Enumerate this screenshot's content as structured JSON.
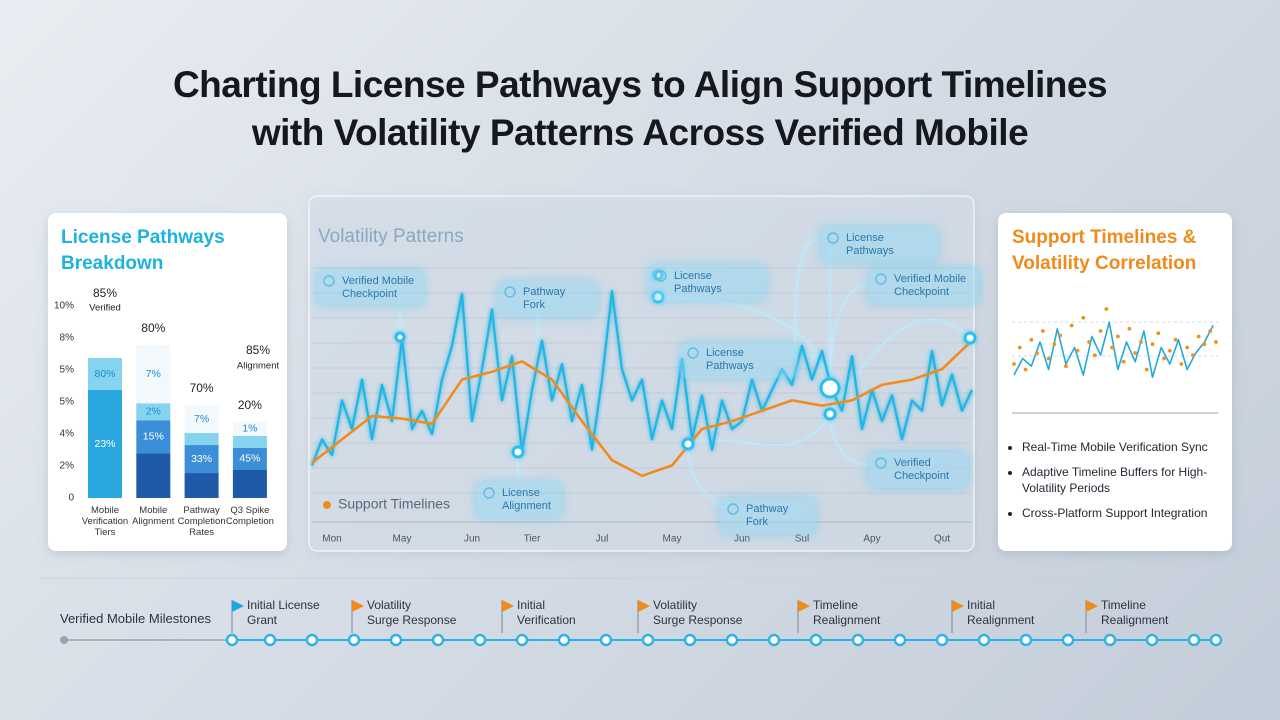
{
  "title": [
    "Charting License Pathways to Align Support Timelines",
    "with Volatility Patterns Across Verified Mobile"
  ],
  "chart_data": [
    {
      "type": "bar",
      "stacked": true,
      "title": [
        "License Pathways",
        "Breakdown"
      ],
      "categories": [
        "Mobile Verification Tiers",
        "Mobile Alignment",
        "Pathway Completion Rates",
        "Q3 Spike Completion"
      ],
      "series": [
        {
          "color": "#2aa7df",
          "values": [
            3.375,
            0,
            0,
            0
          ],
          "labels": [
            "23%",
            null,
            null,
            null
          ]
        },
        {
          "color": "#1f5aa8",
          "values": [
            0,
            1.4,
            0.78,
            0.875
          ],
          "labels": [
            null,
            null,
            null,
            null
          ]
        },
        {
          "color": "#3b8fd8",
          "values": [
            0,
            1.03,
            0.875,
            0.69
          ],
          "labels": [
            null,
            "15%",
            "33%",
            "45%"
          ]
        },
        {
          "color": "#86d3f0",
          "values": [
            1.0,
            0.53,
            0.375,
            0.375
          ],
          "labels": [
            "80%",
            "2%",
            null,
            null
          ]
        },
        {
          "color": "#f3f8fc",
          "values": [
            0,
            1.82,
            0.875,
            0.44
          ],
          "labels": [
            null,
            "7%",
            "7%",
            "1%"
          ]
        }
      ],
      "ylim": [
        0,
        6
      ],
      "yticks": [
        0,
        {
          "value": 1,
          "label": "2%"
        },
        {
          "value": 2,
          "label": "4%"
        },
        {
          "value": 3,
          "label": "5%"
        },
        {
          "value": 4,
          "label": "5%"
        },
        {
          "value": 5,
          "label": "8%"
        },
        {
          "value": 6,
          "label": "10%"
        }
      ],
      "top_labels": [
        [
          "85%",
          "Verified"
        ],
        [
          "80%"
        ],
        [
          "70%"
        ],
        [
          "20%"
        ]
      ],
      "side_label": [
        "85%",
        "Alignment"
      ]
    },
    {
      "type": "line",
      "title": "Volatility Patterns",
      "xlim": [
        0,
        66
      ],
      "xticks": [
        {
          "value": 2,
          "label": "Mon"
        },
        {
          "value": 9,
          "label": "May"
        },
        {
          "value": 16,
          "label": "Jun"
        },
        {
          "value": 22,
          "label": "Tier"
        },
        {
          "value": 29,
          "label": "Jul"
        },
        {
          "value": 36,
          "label": "May"
        },
        {
          "value": 43,
          "label": "Jun"
        },
        {
          "value": 49,
          "label": "Sul"
        },
        {
          "value": 56,
          "label": "Apy"
        },
        {
          "value": 63,
          "label": "Qut"
        }
      ],
      "ylim": [
        0,
        100
      ],
      "grid": true,
      "legend": "bottom-left",
      "series": [
        {
          "color": "#22b5e3",
          "x": [
            0,
            1,
            2,
            3,
            4,
            5,
            6,
            7,
            8,
            9,
            10,
            11,
            12,
            13,
            14,
            15,
            16,
            17,
            18,
            19,
            20,
            21,
            22,
            23,
            24,
            25,
            26,
            27,
            28,
            29,
            30,
            31,
            32,
            33,
            34,
            35,
            36,
            37,
            38,
            39,
            40,
            41,
            42,
            43,
            44,
            45,
            46,
            47,
            48,
            49,
            50,
            51,
            52,
            53,
            54,
            55,
            56,
            57,
            58,
            59,
            60,
            61,
            62,
            63,
            64,
            65,
            66
          ],
          "values": [
            21,
            31,
            25,
            46,
            35,
            54,
            31,
            52,
            38,
            70,
            35,
            42,
            33,
            54,
            67,
            87,
            38,
            58,
            81,
            46,
            63,
            26,
            50,
            69,
            46,
            60,
            38,
            52,
            27,
            54,
            88,
            58,
            46,
            54,
            31,
            46,
            35,
            62,
            31,
            48,
            27,
            46,
            35,
            38,
            54,
            42,
            50,
            58,
            52,
            67,
            54,
            65,
            50,
            42,
            63,
            35,
            50,
            38,
            48,
            31,
            46,
            42,
            65,
            44,
            56,
            42,
            50
          ]
        },
        {
          "name": "Support Timelines",
          "color": "#f08c1e",
          "x": [
            0,
            3,
            6,
            9,
            12,
            15,
            18,
            21,
            24,
            27,
            30,
            33,
            36,
            39,
            42,
            45,
            48,
            51,
            54,
            57,
            60,
            63,
            66
          ],
          "values": [
            22,
            31,
            40,
            39,
            37,
            54,
            57,
            61,
            54,
            38,
            23,
            17,
            21,
            35,
            38,
            42,
            46,
            44,
            46,
            52,
            54,
            58,
            69
          ]
        }
      ],
      "annotations": [
        "Verified Mobile Checkpoint",
        "Pathway Fork",
        "License Pathways",
        "License Pathways",
        "License Pathways",
        "Verified Mobile Checkpoint",
        "Verified Checkpoint",
        "License Alignment",
        "Pathway Fork"
      ]
    },
    {
      "type": "scatter",
      "title": [
        "Support Timelines &",
        "Volatility Correlation"
      ],
      "xlim": [
        0,
        35
      ],
      "ylim": [
        0,
        100
      ],
      "series": [
        {
          "mode": "lines",
          "color": "#22a9de",
          "x": [
            0,
            1.5,
            3,
            4.5,
            6,
            7.5,
            9,
            10.5,
            12,
            13.5,
            15,
            16.5,
            18,
            19.5,
            21,
            22.5,
            24,
            25.5,
            27,
            28.5,
            30,
            31.5,
            33,
            34.5
          ],
          "values": [
            30,
            45,
            38,
            60,
            35,
            72,
            40,
            55,
            30,
            65,
            48,
            78,
            35,
            60,
            42,
            70,
            28,
            55,
            40,
            62,
            35,
            50,
            60,
            75
          ]
        },
        {
          "mode": "markers",
          "color": "#f0901e",
          "x": [
            0,
            1,
            2,
            3,
            4,
            5,
            6,
            7,
            8,
            9,
            10,
            11,
            12,
            13,
            14,
            15,
            16,
            17,
            18,
            19,
            20,
            21,
            22,
            23,
            24,
            25,
            26,
            27,
            28,
            29,
            30,
            31,
            32,
            33,
            34,
            35
          ],
          "values": [
            40,
            55,
            35,
            62,
            50,
            70,
            45,
            58,
            66,
            38,
            75,
            52,
            82,
            60,
            48,
            70,
            90,
            55,
            65,
            42,
            72,
            50,
            60,
            35,
            58,
            68,
            45,
            52,
            62,
            40,
            55,
            48,
            65,
            58,
            70,
            60
          ]
        }
      ]
    }
  ],
  "bullets": [
    "Real-Time Mobile Verification Sync",
    "Adaptive Timeline Buffers for High-Volatility Periods",
    "Cross-Platform Support Integration"
  ],
  "milestones": {
    "label": "Verified Mobile Milestones",
    "items": [
      {
        "lines": [
          "Initial License",
          "Grant"
        ],
        "color": "#1fa6e0"
      },
      {
        "lines": [
          "Volatility",
          "Surge Response"
        ],
        "color": "#f08a1a"
      },
      {
        "lines": [
          "Initial",
          "Verification"
        ],
        "color": "#f08a1a"
      },
      {
        "lines": [
          "Volatility",
          "Surge Response"
        ],
        "color": "#f08a1a"
      },
      {
        "lines": [
          "Timeline",
          "Realignment"
        ],
        "color": "#f08a1a"
      },
      {
        "lines": [
          "Initial",
          "Realignment"
        ],
        "color": "#f08a1a"
      },
      {
        "lines": [
          "Timeline",
          "Realignment"
        ],
        "color": "#f08a1a"
      }
    ]
  }
}
